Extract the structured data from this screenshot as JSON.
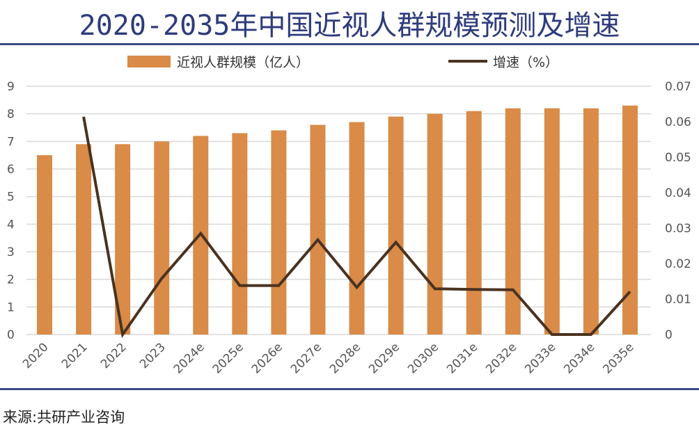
{
  "title": "2020-2035年中国近视人群规模预测及增速",
  "source": "来源:共研产业咨询",
  "chart_data": {
    "type": "bar+line",
    "categories": [
      "2020",
      "2021",
      "2022",
      "2023",
      "2024e",
      "2025e",
      "2026e",
      "2027e",
      "2028e",
      "2029e",
      "2030e",
      "2031e",
      "2032e",
      "2033e",
      "2034e",
      "2035e"
    ],
    "series": [
      {
        "name": "近视人群规模（亿人）",
        "type": "bar",
        "axis": "left",
        "color": "#d98b47",
        "values": [
          6.5,
          6.9,
          6.9,
          7.0,
          7.2,
          7.3,
          7.4,
          7.6,
          7.7,
          7.9,
          8.0,
          8.1,
          8.2,
          8.2,
          8.2,
          8.3
        ]
      },
      {
        "name": "增速（%）",
        "type": "line",
        "axis": "right",
        "color": "#4a3220",
        "values": [
          null,
          0.0614,
          0.0,
          0.0158,
          0.0285,
          0.0138,
          0.0138,
          0.0267,
          0.0133,
          0.026,
          0.0129,
          0.0127,
          0.0126,
          0.0,
          0.0,
          0.0121
        ]
      }
    ],
    "left_axis": {
      "ylim": [
        0,
        9
      ],
      "ticks": [
        "0",
        "1",
        "2",
        "3",
        "4",
        "5",
        "6",
        "7",
        "8",
        "9"
      ]
    },
    "right_axis": {
      "ylim": [
        0,
        0.07
      ],
      "ticks": [
        "0",
        "0.01",
        "0.02",
        "0.03",
        "0.04",
        "0.05",
        "0.06",
        "0.07"
      ]
    },
    "grid": true,
    "legend": "top"
  }
}
